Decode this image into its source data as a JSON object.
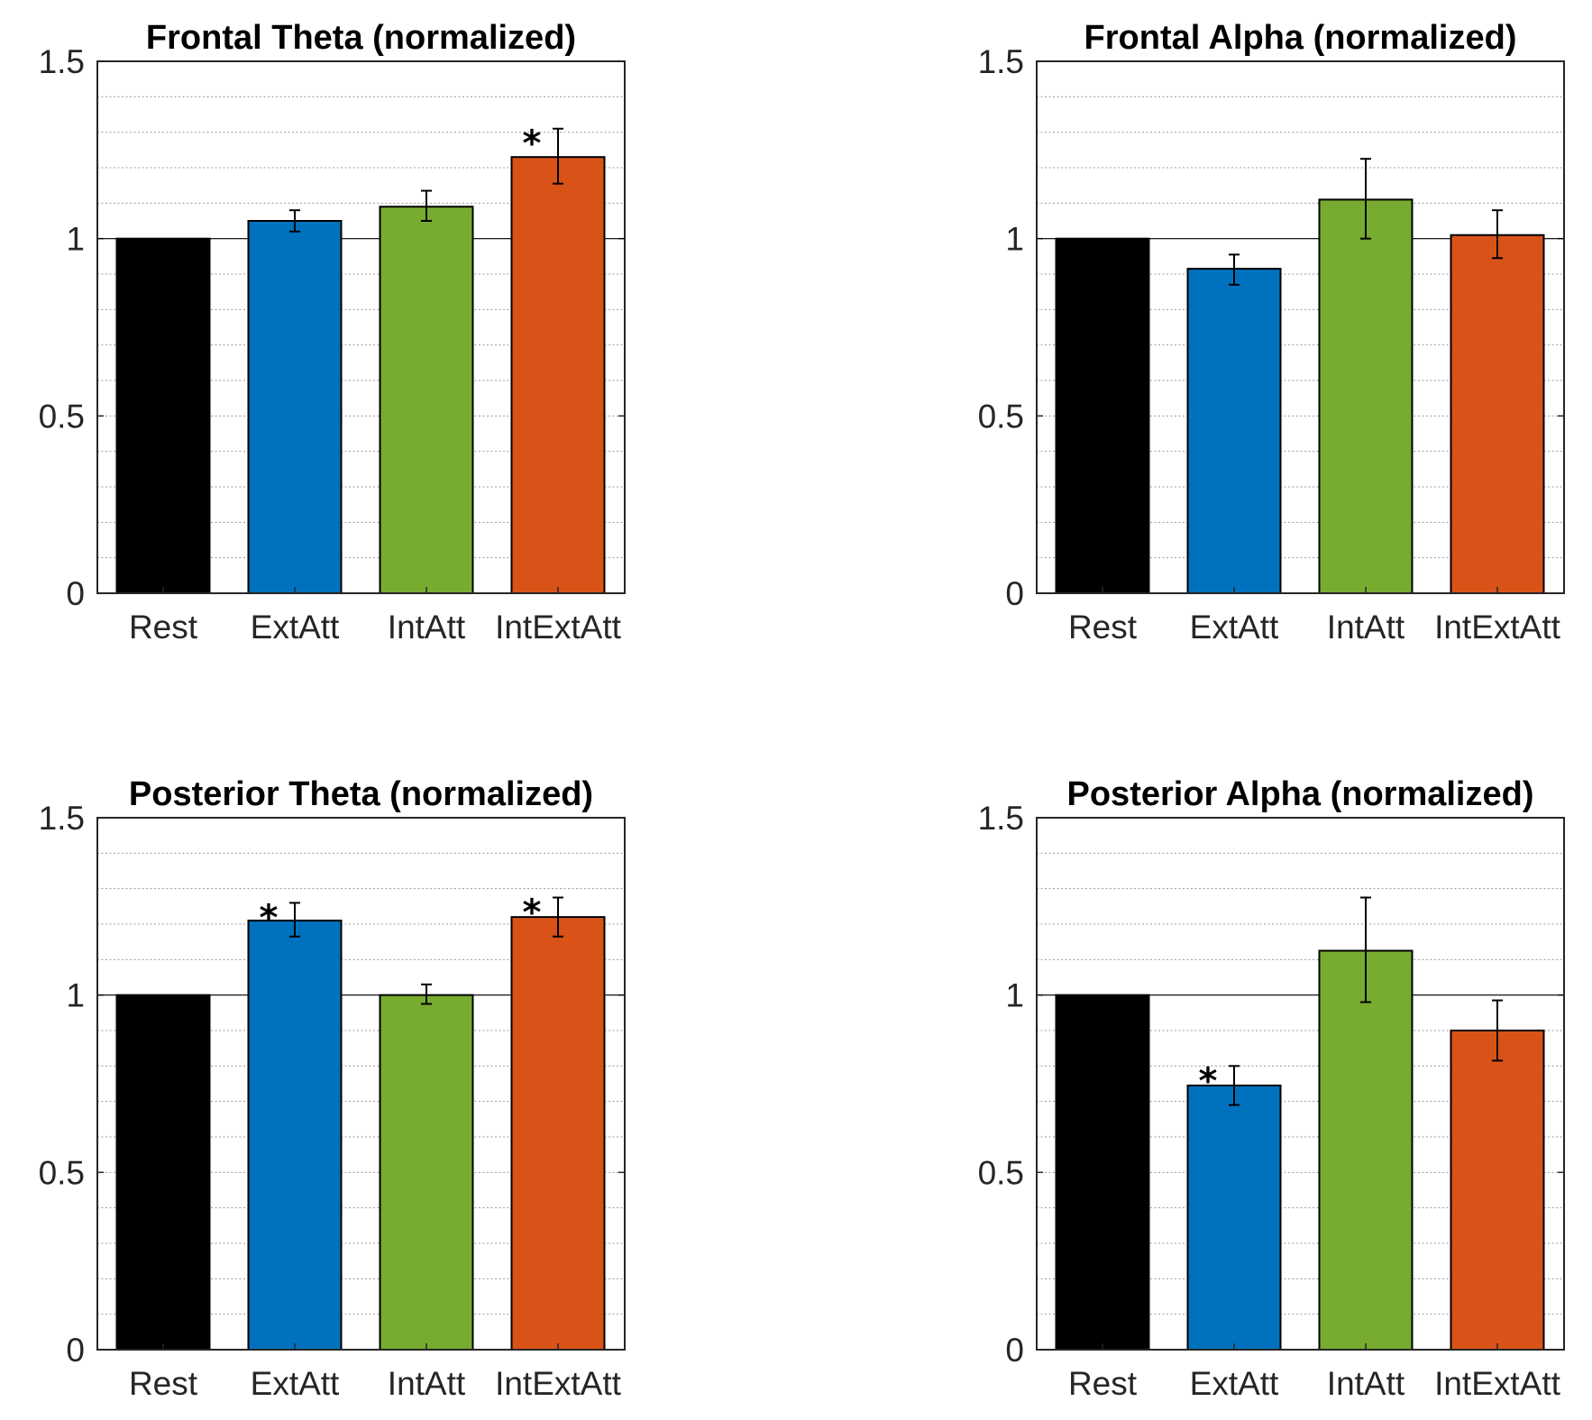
{
  "colors": {
    "Rest": "#000000",
    "ExtAtt": "#0072BD",
    "IntAtt": "#77AC30",
    "IntExtAtt": "#D95319"
  },
  "chart_data": [
    {
      "type": "bar",
      "title": "Frontal Theta (normalized)",
      "categories": [
        "Rest",
        "ExtAtt",
        "IntAtt",
        "IntExtAtt"
      ],
      "values": [
        1.0,
        1.05,
        1.09,
        1.23
      ],
      "error_low": [
        1.0,
        1.02,
        1.05,
        1.155
      ],
      "error_high": [
        1.0,
        1.08,
        1.135,
        1.31
      ],
      "significant": [
        false,
        false,
        false,
        true
      ],
      "significance_marker": "*",
      "ylim": [
        0,
        1.5
      ],
      "yticks": [
        "0",
        "0.5",
        "1",
        "1.5"
      ],
      "grid": "dotted minor y-grid",
      "reference_line": 1
    },
    {
      "type": "bar",
      "title": "Frontal Alpha (normalized)",
      "categories": [
        "Rest",
        "ExtAtt",
        "IntAtt",
        "IntExtAtt"
      ],
      "values": [
        1.0,
        0.915,
        1.11,
        1.01
      ],
      "error_low": [
        1.0,
        0.87,
        1.0,
        0.945
      ],
      "error_high": [
        1.0,
        0.955,
        1.225,
        1.08
      ],
      "significant": [
        false,
        false,
        false,
        false
      ],
      "significance_marker": "*",
      "ylim": [
        0,
        1.5
      ],
      "yticks": [
        "0",
        "0.5",
        "1",
        "1.5"
      ],
      "grid": "dotted minor y-grid",
      "reference_line": 1
    },
    {
      "type": "bar",
      "title": "Posterior Theta (normalized)",
      "categories": [
        "Rest",
        "ExtAtt",
        "IntAtt",
        "IntExtAtt"
      ],
      "values": [
        1.0,
        1.21,
        1.0,
        1.22
      ],
      "error_low": [
        1.0,
        1.165,
        0.975,
        1.165
      ],
      "error_high": [
        1.0,
        1.26,
        1.03,
        1.275
      ],
      "significant": [
        false,
        true,
        false,
        true
      ],
      "significance_marker": "*",
      "ylim": [
        0,
        1.5
      ],
      "yticks": [
        "0",
        "0.5",
        "1",
        "1.5"
      ],
      "grid": "dotted minor y-grid",
      "reference_line": 1
    },
    {
      "type": "bar",
      "title": "Posterior Alpha (normalized)",
      "categories": [
        "Rest",
        "ExtAtt",
        "IntAtt",
        "IntExtAtt"
      ],
      "values": [
        1.0,
        0.745,
        1.125,
        0.9
      ],
      "error_low": [
        1.0,
        0.69,
        0.98,
        0.815
      ],
      "error_high": [
        1.0,
        0.8,
        1.275,
        0.985
      ],
      "significant": [
        false,
        true,
        false,
        false
      ],
      "significance_marker": "*",
      "ylim": [
        0,
        1.5
      ],
      "yticks": [
        "0",
        "0.5",
        "1",
        "1.5"
      ],
      "grid": "dotted minor y-grid",
      "reference_line": 1
    }
  ]
}
